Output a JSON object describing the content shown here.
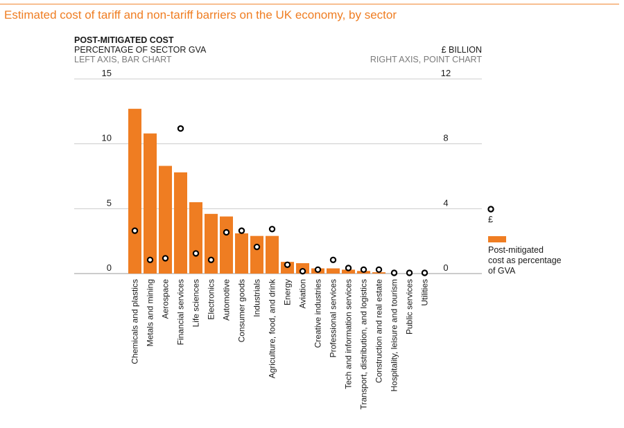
{
  "colors": {
    "accent": "#ef7d22",
    "bar": "#ef7d22",
    "grid": "#cccccc",
    "text": "#1a1a1a",
    "subtext": "#7a7a7a"
  },
  "chart_data": {
    "type": "bar",
    "title": "Estimated cost of tariff and non-tariff barriers on the UK economy, by sector",
    "left_axis": {
      "header_title": "POST-MITIGATED COST",
      "header_subtitle": "PERCENTAGE OF SECTOR GVA",
      "header_note": "LEFT AXIS, BAR CHART",
      "ylim": [
        0,
        15
      ],
      "ticks": [
        0,
        5,
        10,
        15
      ]
    },
    "right_axis": {
      "header_title": "£ BILLION",
      "header_note": "RIGHT AXIS, POINT CHART",
      "ylim": [
        0,
        12
      ],
      "ticks": [
        0,
        4,
        8,
        12
      ]
    },
    "categories": [
      "Chemicals and plastics",
      "Metals and mining",
      "Aerospace",
      "Financial services",
      "Life sciences",
      "Electronics",
      "Automotive",
      "Consumer goods",
      "Industrials",
      "Agriculture,  food, and drink",
      "Energy",
      "Aviation",
      "Creative industries",
      "Professional services",
      "Tech and information services",
      "Transport, distribution, and logistics",
      "Construction and real estate",
      "Hospitality, leisure and tourism",
      "Public services",
      "Utilities"
    ],
    "series": [
      {
        "name": "Post-mitigated cost as percentage of GVA",
        "axis": "left",
        "kind": "bar",
        "values": [
          12.7,
          10.8,
          8.3,
          7.8,
          5.5,
          4.6,
          4.4,
          3.1,
          2.9,
          2.9,
          0.9,
          0.8,
          0.4,
          0.4,
          0.3,
          0.2,
          0.1,
          0.0,
          0.0,
          0.0
        ]
      },
      {
        "name": "£",
        "axis": "right",
        "kind": "point",
        "values": [
          2.6,
          0.8,
          0.9,
          8.9,
          1.2,
          0.8,
          2.5,
          2.6,
          1.6,
          2.7,
          0.5,
          0.1,
          0.2,
          0.8,
          0.3,
          0.2,
          0.2,
          0.0,
          0.0,
          0.0
        ]
      }
    ],
    "legend": {
      "position": "right",
      "point_label": "£",
      "bar_label_lines": [
        "Post-mitigated",
        "cost as percentage",
        "of GVA"
      ]
    }
  }
}
